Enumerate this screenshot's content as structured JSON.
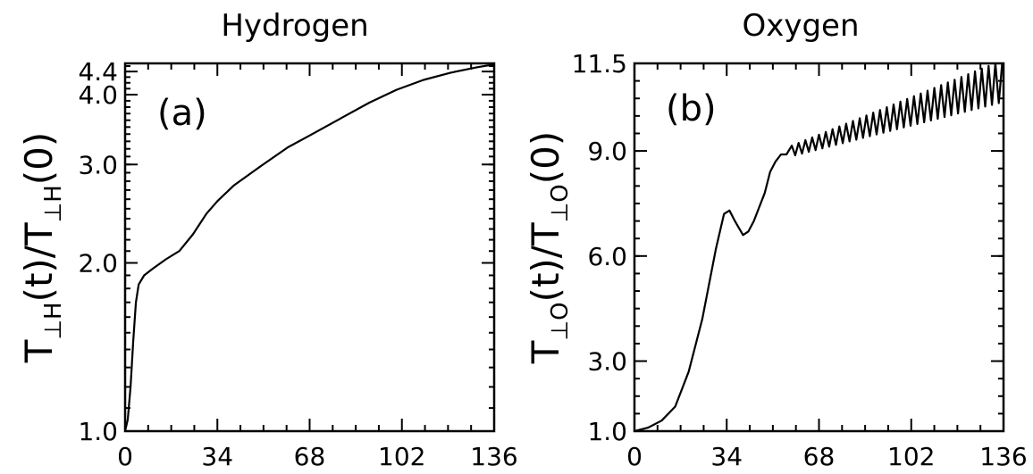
{
  "chart_data": [
    {
      "type": "line",
      "title": "Hydrogen",
      "panel_label": "(a)",
      "ylabel": {
        "main": "T",
        "sub": "⊥H",
        "rest": "(t)/T",
        "sub2": "⊥H",
        "tail": "(0)"
      },
      "xticks": [
        "0",
        "34",
        "68",
        "102",
        "136"
      ],
      "yticks": [
        "1.0",
        "2.0",
        "3.0",
        "4.0",
        "4.4"
      ],
      "xlim": [
        0,
        136
      ],
      "ylim": [
        1.0,
        4.55
      ],
      "yscale": "log",
      "series": [
        {
          "x": [
            0,
            1,
            2,
            3,
            4,
            5,
            7,
            10,
            15,
            20,
            25,
            30,
            34,
            40,
            50,
            60,
            68,
            80,
            90,
            100,
            110,
            120,
            130,
            136
          ],
          "y": [
            1.0,
            1.05,
            1.2,
            1.45,
            1.7,
            1.83,
            1.9,
            1.95,
            2.03,
            2.1,
            2.25,
            2.45,
            2.58,
            2.75,
            2.98,
            3.22,
            3.38,
            3.64,
            3.87,
            4.08,
            4.25,
            4.38,
            4.48,
            4.53
          ]
        }
      ]
    },
    {
      "type": "line",
      "title": "Oxygen",
      "panel_label": "(b)",
      "ylabel": {
        "main": "T",
        "sub": "⊥O",
        "rest": "(t)/T",
        "sub2": "⊥O",
        "tail": "(0)"
      },
      "xticks": [
        "0",
        "34",
        "68",
        "102",
        "136"
      ],
      "yticks": [
        "1.0",
        "3.0",
        "6.0",
        "9.0",
        "11.5"
      ],
      "xlim": [
        0,
        136
      ],
      "ylim": [
        1.0,
        11.5
      ],
      "yscale": "linear",
      "series": [
        {
          "x": [
            0,
            5,
            10,
            15,
            20,
            25,
            30,
            33,
            35,
            37,
            40,
            42,
            44,
            46,
            48,
            50,
            52,
            54,
            56,
            58,
            60,
            62,
            64,
            66
          ],
          "y": [
            1.0,
            1.1,
            1.3,
            1.7,
            2.7,
            4.2,
            6.2,
            7.2,
            7.3,
            7.0,
            6.6,
            6.7,
            7.0,
            7.4,
            7.8,
            8.4,
            8.7,
            8.9,
            8.9,
            8.7,
            8.8,
            9.0,
            8.9,
            9.0
          ]
        }
      ],
      "oscillation": {
        "start_x": 58,
        "end_x": 136,
        "period": 2.5,
        "center_start": 9.0,
        "center_end": 11.0,
        "amp_start": 0.15,
        "amp_end": 0.6
      }
    }
  ]
}
